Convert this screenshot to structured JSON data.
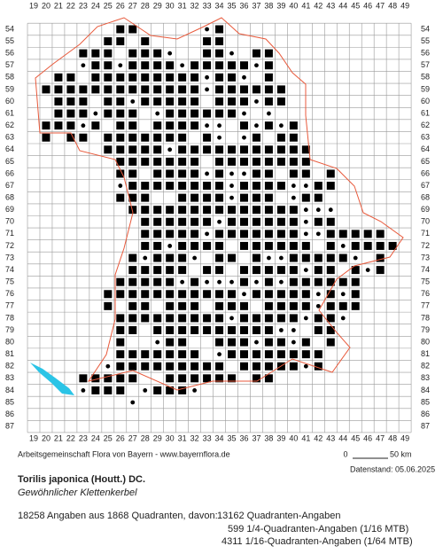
{
  "grid": {
    "columns": [
      19,
      20,
      21,
      22,
      23,
      24,
      25,
      26,
      27,
      28,
      29,
      30,
      31,
      32,
      33,
      34,
      35,
      36,
      37,
      38,
      39,
      40,
      41,
      42,
      43,
      44,
      45,
      46,
      47,
      48,
      49
    ],
    "rows": [
      54,
      55,
      56,
      57,
      58,
      59,
      60,
      61,
      62,
      63,
      64,
      65,
      66,
      67,
      68,
      69,
      70,
      71,
      72,
      73,
      74,
      75,
      76,
      77,
      78,
      79,
      80,
      81,
      82,
      83,
      84,
      85,
      86,
      87
    ]
  },
  "credit": "Arbeitsgemeinschaft Flora von Bayern - www.bayernflora.de",
  "scale": {
    "start": "0",
    "end": "50 km"
  },
  "date": "Datenstand: 05.06.2025",
  "species": {
    "name": "Torilis japonica (Houtt.) DC.",
    "common_name": "Gewöhnlicher Klettenkerbel"
  },
  "stats": {
    "summary": "18258 Angaben aus 1868 Quadranten, davon:",
    "lines": [
      "13162 Quadranten-Angaben",
      "599 1/4-Quadranten-Angaben (1/16 MTB)",
      "4311 1/16-Quadranten-Angaben (1/64 MTB)"
    ]
  }
}
